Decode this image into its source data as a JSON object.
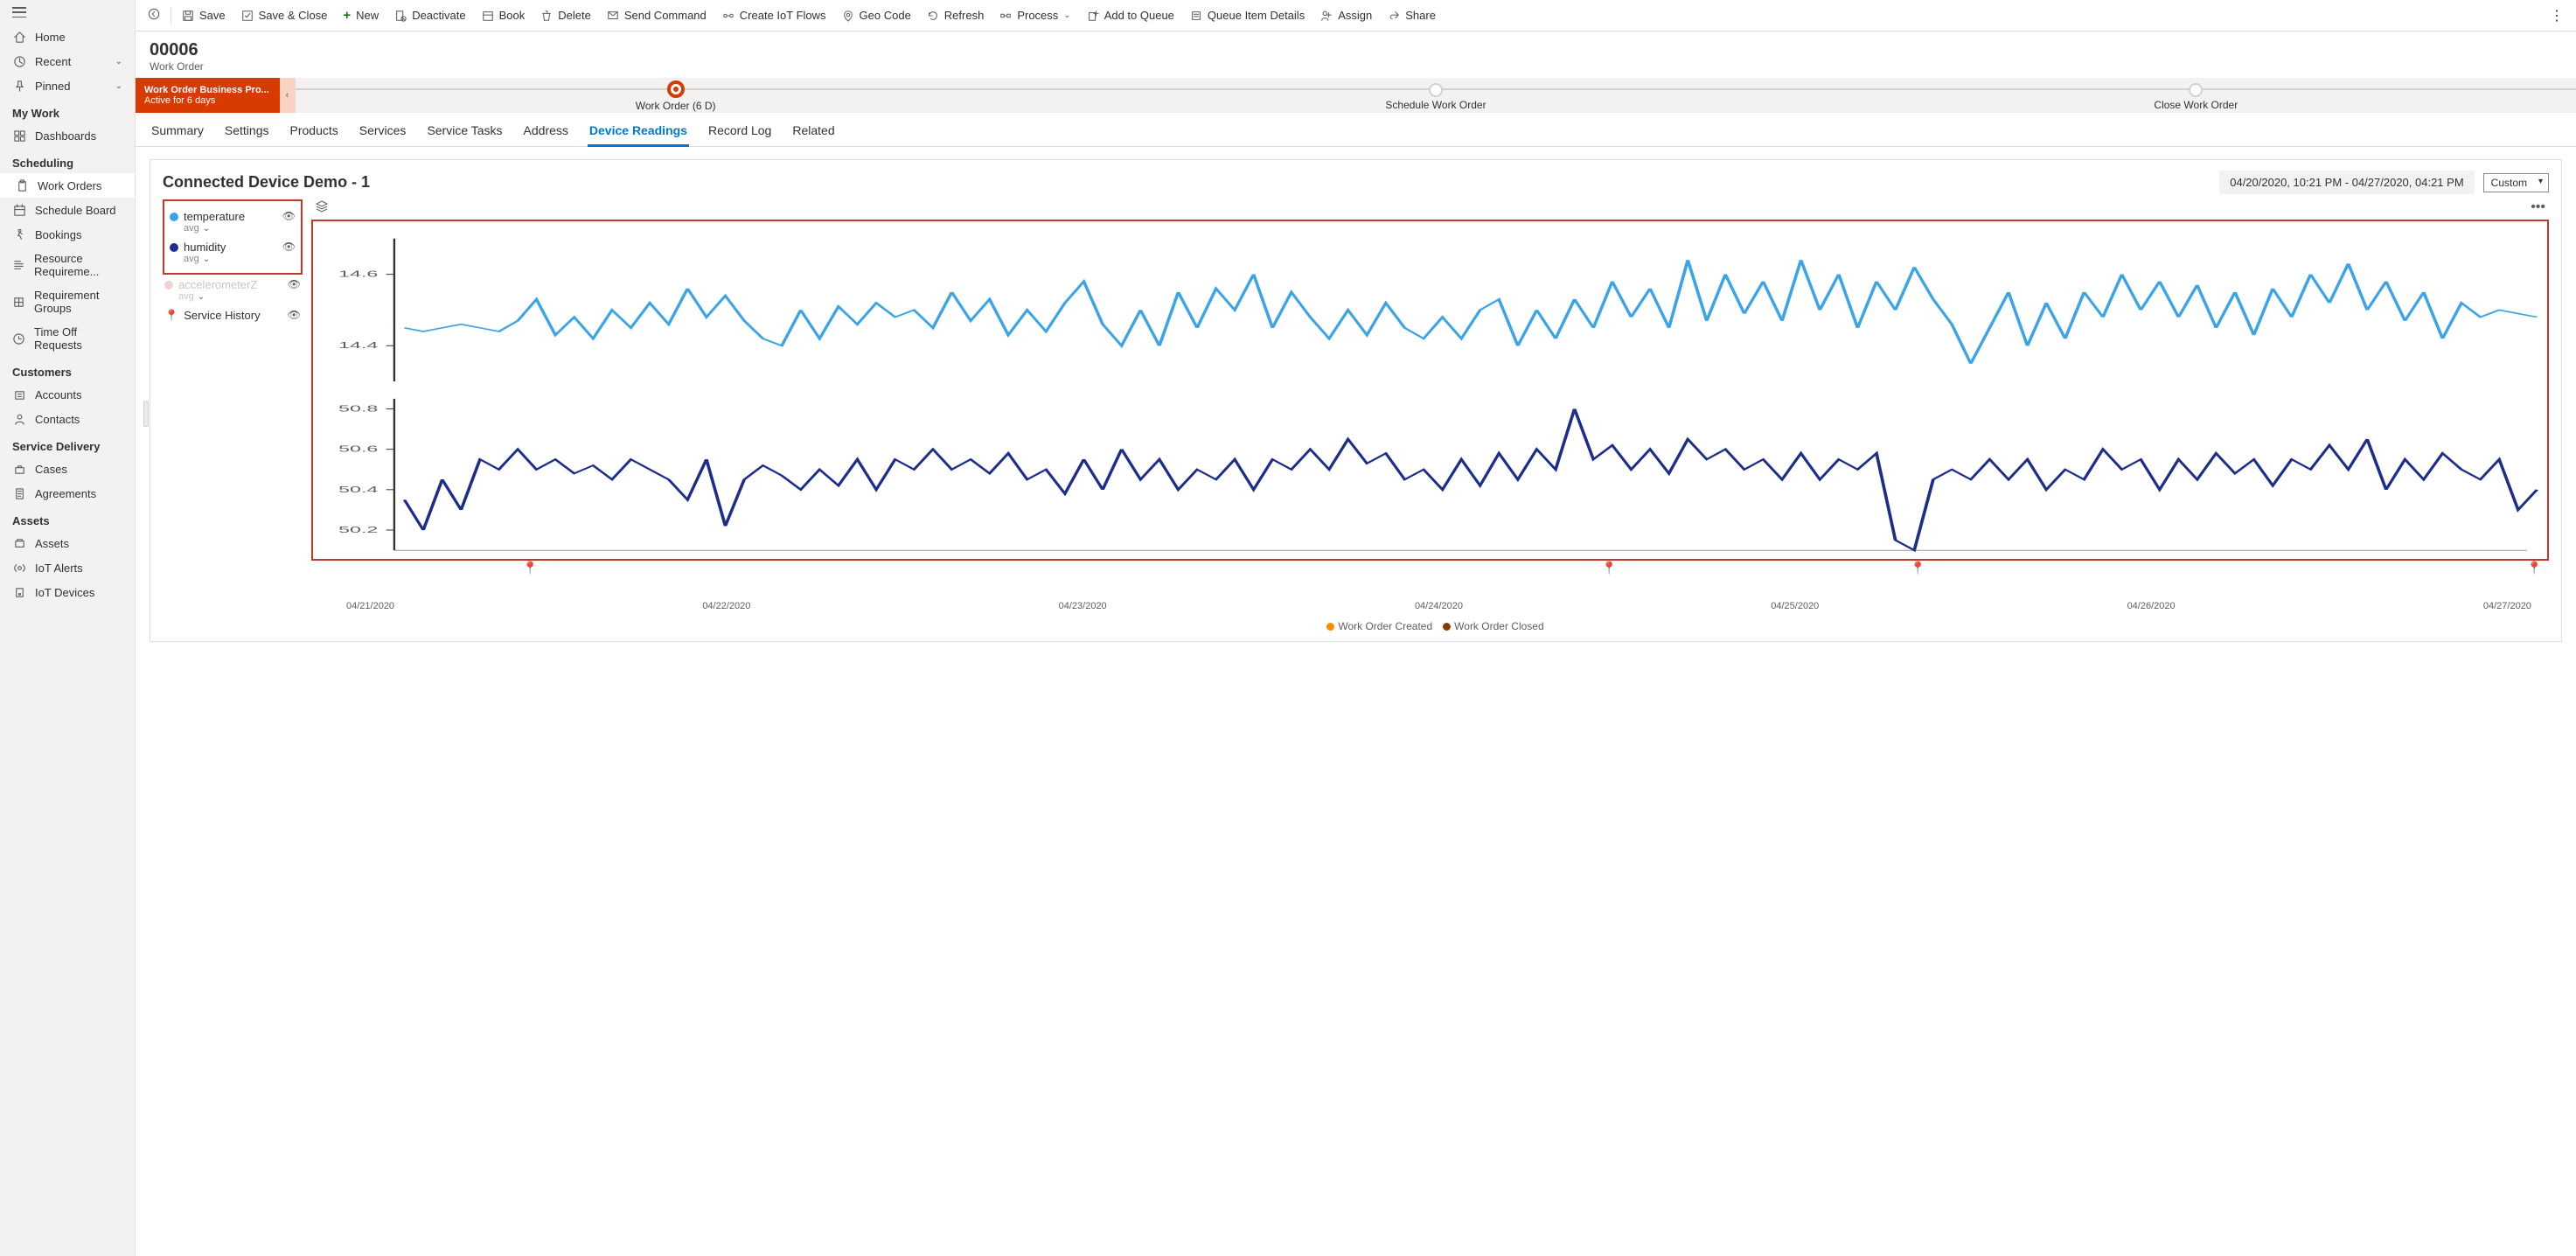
{
  "sidebar": {
    "top_items": [
      {
        "icon": "home",
        "label": "Home"
      },
      {
        "icon": "clock",
        "label": "Recent",
        "chevron": true
      },
      {
        "icon": "pin",
        "label": "Pinned",
        "chevron": true
      }
    ],
    "sections": [
      {
        "header": "My Work",
        "items": [
          {
            "icon": "dash",
            "label": "Dashboards"
          }
        ]
      },
      {
        "header": "Scheduling",
        "items": [
          {
            "icon": "clip",
            "label": "Work Orders",
            "active": true
          },
          {
            "icon": "cal",
            "label": "Schedule Board"
          },
          {
            "icon": "run",
            "label": "Bookings"
          },
          {
            "icon": "req",
            "label": "Resource Requireme..."
          },
          {
            "icon": "grp",
            "label": "Requirement Groups"
          },
          {
            "icon": "time",
            "label": "Time Off Requests"
          }
        ]
      },
      {
        "header": "Customers",
        "items": [
          {
            "icon": "acc",
            "label": "Accounts"
          },
          {
            "icon": "con",
            "label": "Contacts"
          }
        ]
      },
      {
        "header": "Service Delivery",
        "items": [
          {
            "icon": "case",
            "label": "Cases"
          },
          {
            "icon": "agr",
            "label": "Agreements"
          }
        ]
      },
      {
        "header": "Assets",
        "items": [
          {
            "icon": "asset",
            "label": "Assets"
          },
          {
            "icon": "alert",
            "label": "IoT Alerts"
          },
          {
            "icon": "dev",
            "label": "IoT Devices"
          }
        ]
      }
    ]
  },
  "commands": [
    {
      "id": "save",
      "label": "Save"
    },
    {
      "id": "saveclose",
      "label": "Save & Close"
    },
    {
      "id": "new",
      "label": "New",
      "accent": "green"
    },
    {
      "id": "deactivate",
      "label": "Deactivate"
    },
    {
      "id": "book",
      "label": "Book"
    },
    {
      "id": "delete",
      "label": "Delete"
    },
    {
      "id": "sendcmd",
      "label": "Send Command"
    },
    {
      "id": "iotflows",
      "label": "Create IoT Flows"
    },
    {
      "id": "geocode",
      "label": "Geo Code"
    },
    {
      "id": "refresh",
      "label": "Refresh"
    },
    {
      "id": "process",
      "label": "Process",
      "chevron": true
    },
    {
      "id": "addqueue",
      "label": "Add to Queue"
    },
    {
      "id": "queuedetails",
      "label": "Queue Item Details"
    },
    {
      "id": "assign",
      "label": "Assign"
    },
    {
      "id": "share",
      "label": "Share"
    }
  ],
  "record": {
    "id": "00006",
    "type": "Work Order"
  },
  "bpf": {
    "name": "Work Order Business Pro...",
    "status": "Active for 6 days",
    "stages": [
      {
        "name": "Work Order",
        "suffix": "(6 D)",
        "active": true
      },
      {
        "name": "Schedule Work Order"
      },
      {
        "name": "Close Work Order"
      }
    ]
  },
  "tabs": [
    "Summary",
    "Settings",
    "Products",
    "Services",
    "Service Tasks",
    "Address",
    "Device Readings",
    "Record Log",
    "Related"
  ],
  "active_tab": "Device Readings",
  "chart": {
    "title": "Connected Device Demo - 1",
    "date_range": "04/20/2020, 10:21 PM - 04/27/2020, 04:21 PM",
    "range_mode": "Custom",
    "series": [
      {
        "name": "temperature",
        "sub": "avg",
        "color": "#3ba3e8",
        "visible": true
      },
      {
        "name": "humidity",
        "sub": "avg",
        "color": "#1c2d8c",
        "visible": true
      },
      {
        "name": "accelerometerZ",
        "sub": "avg",
        "color": "#f3d1d1",
        "faded": true
      }
    ],
    "service_history_label": "Service History",
    "temp_chart": {
      "ylim": [
        14.3,
        14.7
      ],
      "yticks": [
        "14.4",
        "14.6"
      ],
      "color": "#3ba3e8",
      "stroke_width": 1.6,
      "values": [
        14.45,
        14.44,
        14.45,
        14.46,
        14.45,
        14.44,
        14.47,
        14.53,
        14.43,
        14.48,
        14.42,
        14.5,
        14.45,
        14.52,
        14.46,
        14.56,
        14.48,
        14.54,
        14.47,
        14.42,
        14.4,
        14.5,
        14.42,
        14.51,
        14.46,
        14.52,
        14.48,
        14.5,
        14.45,
        14.55,
        14.47,
        14.53,
        14.43,
        14.5,
        14.44,
        14.52,
        14.58,
        14.46,
        14.4,
        14.5,
        14.4,
        14.55,
        14.45,
        14.56,
        14.5,
        14.6,
        14.45,
        14.55,
        14.48,
        14.42,
        14.5,
        14.43,
        14.52,
        14.45,
        14.42,
        14.48,
        14.42,
        14.5,
        14.53,
        14.4,
        14.5,
        14.42,
        14.53,
        14.45,
        14.58,
        14.48,
        14.56,
        14.45,
        14.64,
        14.47,
        14.6,
        14.49,
        14.58,
        14.47,
        14.64,
        14.5,
        14.6,
        14.45,
        14.58,
        14.5,
        14.62,
        14.53,
        14.46,
        14.35,
        14.45,
        14.55,
        14.4,
        14.52,
        14.42,
        14.55,
        14.48,
        14.6,
        14.5,
        14.58,
        14.48,
        14.57,
        14.45,
        14.55,
        14.43,
        14.56,
        14.48,
        14.6,
        14.52,
        14.63,
        14.5,
        14.58,
        14.47,
        14.55,
        14.42,
        14.52,
        14.48,
        14.5,
        14.49,
        14.48
      ]
    },
    "hum_chart": {
      "ylim": [
        50.1,
        50.85
      ],
      "yticks": [
        "50.2",
        "50.4",
        "50.6",
        "50.8"
      ],
      "color": "#1c2d8c",
      "stroke_width": 1.6,
      "values": [
        50.35,
        50.2,
        50.45,
        50.3,
        50.55,
        50.5,
        50.6,
        50.5,
        50.55,
        50.48,
        50.52,
        50.45,
        50.55,
        50.5,
        50.45,
        50.35,
        50.55,
        50.22,
        50.45,
        50.52,
        50.47,
        50.4,
        50.5,
        50.42,
        50.55,
        50.4,
        50.55,
        50.5,
        50.6,
        50.5,
        50.55,
        50.48,
        50.58,
        50.45,
        50.5,
        50.38,
        50.55,
        50.4,
        50.6,
        50.45,
        50.55,
        50.4,
        50.5,
        50.45,
        50.55,
        50.4,
        50.55,
        50.5,
        50.6,
        50.5,
        50.65,
        50.53,
        50.58,
        50.45,
        50.5,
        50.4,
        50.55,
        50.42,
        50.58,
        50.45,
        50.6,
        50.5,
        50.8,
        50.55,
        50.62,
        50.5,
        50.6,
        50.48,
        50.65,
        50.55,
        50.6,
        50.5,
        50.55,
        50.45,
        50.58,
        50.45,
        50.55,
        50.5,
        50.58,
        50.15,
        50.1,
        50.45,
        50.5,
        50.45,
        50.55,
        50.45,
        50.55,
        50.4,
        50.5,
        50.45,
        50.6,
        50.5,
        50.55,
        50.4,
        50.55,
        50.45,
        50.58,
        50.48,
        50.55,
        50.42,
        50.55,
        50.5,
        50.62,
        50.5,
        50.65,
        50.4,
        50.55,
        50.45,
        50.58,
        50.5,
        50.45,
        50.55,
        50.3,
        50.4
      ]
    },
    "x_labels": [
      "04/21/2020",
      "04/22/2020",
      "04/23/2020",
      "04/24/2020",
      "04/25/2020",
      "04/26/2020",
      "04/27/2020"
    ],
    "markers": [
      {
        "pos_pct": 8,
        "type": "created"
      },
      {
        "pos_pct": 57,
        "type": "closed"
      },
      {
        "pos_pct": 71,
        "type": "closed"
      },
      {
        "pos_pct": 99,
        "type": "closed"
      }
    ],
    "event_legend": [
      {
        "color": "#ff8c00",
        "label": "Work Order Created"
      },
      {
        "color": "#8b3a00",
        "label": "Work Order Closed"
      }
    ],
    "highlight_border": "#c0392b"
  }
}
